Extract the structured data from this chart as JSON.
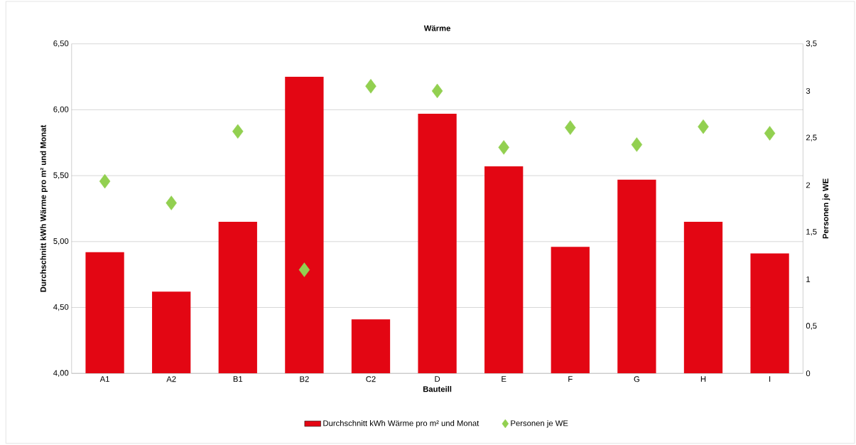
{
  "chart_data": {
    "type": "bar",
    "title": "Wärme",
    "xlabel": "Bauteill",
    "ylabel": "Durchschnitt kWh Wärme pro m² und Monat",
    "y2label": "Personen je WE",
    "categories": [
      "A1",
      "A2",
      "B1",
      "B2",
      "C2",
      "D",
      "E",
      "F",
      "G",
      "H",
      "I"
    ],
    "series": [
      {
        "name": "Durchschnitt kWh Wärme pro m² und Monat",
        "color": "#e30613",
        "values": [
          4.92,
          4.62,
          5.15,
          6.25,
          4.41,
          5.97,
          5.57,
          4.96,
          5.47,
          5.15,
          4.91
        ]
      },
      {
        "name": "Personen je WE",
        "type": "scatter",
        "axis": "y2",
        "marker": "diamond",
        "color": "#92d050",
        "values": [
          2.04,
          1.81,
          2.57,
          1.1,
          3.05,
          3.0,
          2.4,
          2.61,
          2.43,
          2.62,
          2.55
        ]
      }
    ],
    "ylim": [
      4.0,
      6.5
    ],
    "yticks": [
      {
        "value": 4.0,
        "label": "4,00"
      },
      {
        "value": 4.5,
        "label": "4,50"
      },
      {
        "value": 5.0,
        "label": "5,00"
      },
      {
        "value": 5.5,
        "label": "5,50"
      },
      {
        "value": 6.0,
        "label": "6,00"
      },
      {
        "value": 6.5,
        "label": "6,50"
      }
    ],
    "y2lim": [
      0,
      3.5
    ],
    "y2ticks": [
      0,
      {
        "value": 0.5,
        "label": "0,5"
      },
      1,
      {
        "value": 1.5,
        "label": "1,5"
      },
      2,
      {
        "value": 2.5,
        "label": "2,5"
      },
      3,
      {
        "value": 3.5,
        "label": "3,5"
      }
    ],
    "grid": "y",
    "legend": "bottom"
  }
}
